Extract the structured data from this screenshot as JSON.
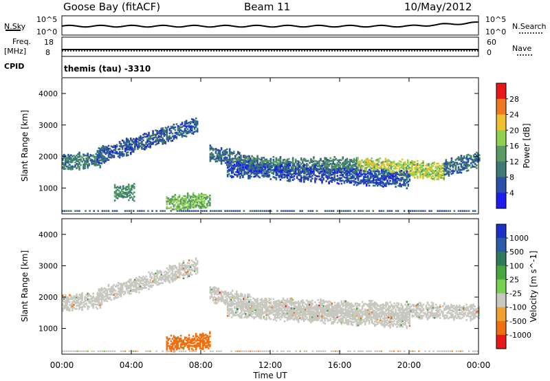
{
  "header": {
    "station": "Goose Bay (fitACF)",
    "beam": "Beam 11",
    "date": "10/May/2012"
  },
  "nsky_panel": {
    "left_label": "N.Sky",
    "right_label": "N.Search",
    "left_ticks": [
      "10^5",
      "10^0"
    ],
    "right_ticks": [
      "10^5",
      "10^0"
    ]
  },
  "freq_panel": {
    "left_label_1": "Freq.",
    "left_label_2": "[MHz]",
    "right_label": "Nave",
    "left_ticks": [
      "18",
      "8"
    ],
    "right_ticks": [
      "60",
      "0"
    ]
  },
  "cpid": {
    "label": "CPID",
    "value": "themis (tau) -3310"
  },
  "x_axis": {
    "label": "Time UT",
    "ticks": [
      "00:00",
      "04:00",
      "08:00",
      "12:00",
      "16:00",
      "20:00",
      "00:00"
    ]
  },
  "chart_data": [
    {
      "type": "heatmap",
      "title": "Power",
      "xlabel": "Time UT",
      "ylabel": "Slant Range [km]",
      "xlim": [
        0,
        24
      ],
      "ylim": [
        180,
        4500
      ],
      "yticks": [
        "1000",
        "2000",
        "3000",
        "4000"
      ],
      "colorbar_label": "Power [dB]",
      "colorbar_ticks": [
        "4",
        "8",
        "12",
        "16",
        "20",
        "24",
        "28"
      ],
      "colorbar_colors": [
        "#1c1cf0",
        "#2a4fa8",
        "#3c7a72",
        "#5a9a64",
        "#8fd050",
        "#f0c030",
        "#f07820",
        "#e81818"
      ],
      "echo_bands": [
        {
          "t_start": 0.0,
          "t_end": 2.3,
          "r_start": 1800,
          "r_end": 1900,
          "level": 10
        },
        {
          "t_start": 2.0,
          "t_end": 7.8,
          "r_start": 2000,
          "r_end": 3000,
          "level": 7
        },
        {
          "t_start": 8.5,
          "t_end": 11.5,
          "r_start": 2100,
          "r_end": 1700,
          "level": 9
        },
        {
          "t_start": 11.5,
          "t_end": 17.0,
          "r_start": 1700,
          "r_end": 1700,
          "level": 11
        },
        {
          "t_start": 17.0,
          "t_end": 22.0,
          "r_start": 1750,
          "r_end": 1500,
          "level": 19
        },
        {
          "t_start": 22.0,
          "t_end": 24.0,
          "r_start": 1600,
          "r_end": 1900,
          "level": 9
        },
        {
          "t_start": 9.5,
          "t_end": 20.0,
          "r_start": 1600,
          "r_end": 1250,
          "level": 6
        },
        {
          "t_start": 6.0,
          "t_end": 8.5,
          "r_start": 500,
          "r_end": 600,
          "level": 16
        },
        {
          "t_start": 3.0,
          "t_end": 4.2,
          "r_start": 850,
          "r_end": 850,
          "level": 12
        }
      ]
    },
    {
      "type": "heatmap",
      "title": "Velocity",
      "xlabel": "Time UT",
      "ylabel": "Slant Range [km]",
      "xlim": [
        0,
        24
      ],
      "ylim": [
        180,
        4500
      ],
      "yticks": [
        "1000",
        "2000",
        "3000",
        "4000"
      ],
      "colorbar_label": "Velocity [m s^-1]",
      "colorbar_ticks": [
        "1000",
        "500",
        "100",
        "25",
        "-25",
        "-100",
        "-500",
        "-1000"
      ],
      "colorbar_colors": [
        "#1c30c8",
        "#2a5aa8",
        "#2f7a5a",
        "#48a840",
        "#78d050",
        "#c8c8c0",
        "#f0a030",
        "#f07010",
        "#e81818"
      ],
      "echo_bands": [
        {
          "t_start": 0.0,
          "t_end": 2.3,
          "r_start": 1800,
          "r_end": 1900,
          "level": 0
        },
        {
          "t_start": 2.0,
          "t_end": 7.8,
          "r_start": 2000,
          "r_end": 3000,
          "level": 0
        },
        {
          "t_start": 8.5,
          "t_end": 11.5,
          "r_start": 2100,
          "r_end": 1700,
          "level": 0
        },
        {
          "t_start": 11.5,
          "t_end": 24.0,
          "r_start": 1700,
          "r_end": 1500,
          "level": 0
        },
        {
          "t_start": 9.5,
          "t_end": 20.0,
          "r_start": 1600,
          "r_end": 1250,
          "level": 0
        },
        {
          "t_start": 6.0,
          "t_end": 8.5,
          "r_start": 500,
          "r_end": 600,
          "level": -200
        }
      ]
    }
  ]
}
